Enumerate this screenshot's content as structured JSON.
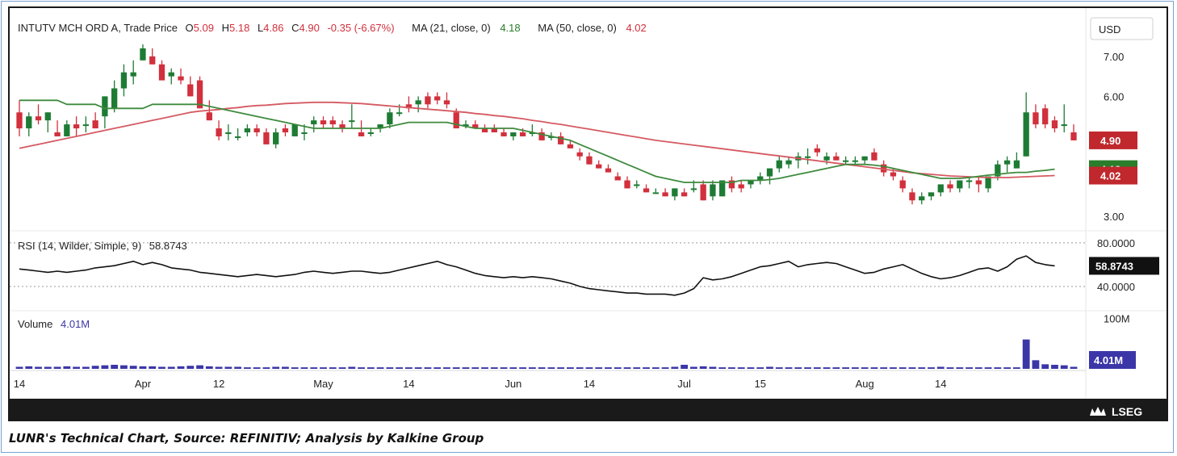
{
  "legend": {
    "symbol": "INTUTV MCH ORD A, Trade Price",
    "o_label": "O",
    "o_val": "5.09",
    "h_label": "H",
    "h_val": "5.18",
    "l_label": "L",
    "l_val": "4.86",
    "c_label": "C",
    "c_val": "4.90",
    "change": "-0.35 (-6.67%)",
    "ma21_label": "MA (21, close, 0)",
    "ma21_val": "4.18",
    "ma50_label": "MA (50, close, 0)",
    "ma50_val": "4.02"
  },
  "currency": "USD",
  "rsi_legend": {
    "label": "RSI (14, Wilder, Simple, 9)",
    "value": "58.8743"
  },
  "volume_legend": {
    "label": "Volume",
    "value": "4.01M"
  },
  "caption": "LUNR's Technical Chart, Source: REFINITIV; Analysis by Kalkine Group",
  "brand": "LSEG",
  "colors": {
    "up": "#1e7b34",
    "down": "#d1303c",
    "ma21": "#3e8a3e",
    "ma50": "#d55a62",
    "rsi": "#111111",
    "volume": "#3b36a8"
  },
  "chart_data": {
    "type": "candlestick",
    "price_axis": {
      "ticks": [
        3.0,
        4.0,
        5.0,
        6.0,
        7.0
      ],
      "labels": [
        "3.00",
        "4.00",
        "5.00",
        "6.00",
        "7.00"
      ],
      "ylim": [
        2.8,
        7.4
      ]
    },
    "badges": [
      {
        "value": 4.9,
        "label": "4.90",
        "color": "#c0282d"
      },
      {
        "value": 4.18,
        "label": "4.18",
        "color": "#2a7d2a"
      },
      {
        "value": 4.02,
        "label": "4.02",
        "color": "#c0282d"
      }
    ],
    "rsi_axis": {
      "ticks": [
        80,
        40
      ],
      "labels": [
        "80.0000",
        "40.0000"
      ],
      "ylim": [
        20,
        88
      ],
      "last": 58.87,
      "last_label": "58.8743"
    },
    "volume_axis": {
      "tick": 100,
      "tick_label": "100M",
      "last": 4.01,
      "last_label": "4.01M",
      "ylim": [
        0,
        110
      ]
    },
    "x_ticks": [
      {
        "i": 0,
        "label": "14"
      },
      {
        "i": 13,
        "label": "Apr"
      },
      {
        "i": 21,
        "label": "12"
      },
      {
        "i": 32,
        "label": "May"
      },
      {
        "i": 41,
        "label": "14"
      },
      {
        "i": 52,
        "label": "Jun"
      },
      {
        "i": 60,
        "label": "14"
      },
      {
        "i": 70,
        "label": "Jul"
      },
      {
        "i": 78,
        "label": "15"
      },
      {
        "i": 89,
        "label": "Aug"
      },
      {
        "i": 97,
        "label": "14"
      }
    ],
    "candles": [
      [
        5.6,
        5.9,
        5.0,
        5.2
      ],
      [
        5.2,
        5.6,
        5.0,
        5.5
      ],
      [
        5.5,
        5.8,
        5.3,
        5.4
      ],
      [
        5.4,
        5.6,
        5.1,
        5.6
      ],
      [
        5.1,
        5.4,
        5.0,
        5.0
      ],
      [
        5.0,
        5.4,
        5.0,
        5.3
      ],
      [
        5.3,
        5.5,
        5.0,
        5.2
      ],
      [
        5.3,
        5.5,
        5.1,
        5.3
      ],
      [
        5.4,
        5.6,
        5.2,
        5.2
      ],
      [
        5.5,
        6.0,
        5.2,
        6.0
      ],
      [
        5.7,
        6.4,
        5.6,
        6.2
      ],
      [
        6.2,
        6.8,
        6.0,
        6.6
      ],
      [
        6.5,
        6.9,
        6.3,
        6.6
      ],
      [
        6.9,
        7.3,
        6.9,
        7.2
      ],
      [
        7.0,
        7.2,
        6.8,
        6.8
      ],
      [
        6.8,
        6.9,
        6.4,
        6.4
      ],
      [
        6.5,
        6.7,
        6.3,
        6.6
      ],
      [
        6.5,
        6.7,
        6.3,
        6.4
      ],
      [
        6.3,
        6.5,
        6.0,
        6.0
      ],
      [
        6.4,
        6.5,
        5.7,
        5.7
      ],
      [
        5.6,
        5.9,
        5.4,
        5.4
      ],
      [
        5.2,
        5.4,
        4.9,
        5.0
      ],
      [
        5.1,
        5.3,
        4.9,
        5.1
      ],
      [
        5.0,
        5.2,
        4.9,
        5.0
      ],
      [
        5.1,
        5.3,
        5.0,
        5.2
      ],
      [
        5.2,
        5.3,
        5.0,
        5.1
      ],
      [
        5.1,
        5.2,
        4.8,
        4.8
      ],
      [
        4.8,
        5.2,
        4.7,
        5.1
      ],
      [
        5.2,
        5.3,
        5.0,
        5.1
      ],
      [
        5.0,
        5.3,
        5.0,
        5.3
      ],
      [
        5.1,
        5.3,
        4.9,
        5.1
      ],
      [
        5.3,
        5.5,
        5.1,
        5.4
      ],
      [
        5.4,
        5.5,
        5.2,
        5.3
      ],
      [
        5.4,
        5.5,
        5.2,
        5.3
      ],
      [
        5.3,
        5.4,
        5.1,
        5.2
      ],
      [
        5.4,
        5.8,
        5.2,
        5.4
      ],
      [
        5.1,
        5.4,
        5.0,
        5.0
      ],
      [
        5.1,
        5.2,
        5.0,
        5.1
      ],
      [
        5.2,
        5.3,
        5.1,
        5.3
      ],
      [
        5.3,
        5.7,
        5.2,
        5.6
      ],
      [
        5.6,
        5.8,
        5.5,
        5.6
      ],
      [
        5.8,
        6.0,
        5.6,
        5.7
      ],
      [
        5.8,
        6.0,
        5.6,
        5.9
      ],
      [
        6.0,
        6.1,
        5.7,
        5.8
      ],
      [
        6.0,
        6.1,
        5.8,
        5.9
      ],
      [
        5.9,
        6.1,
        5.7,
        5.8
      ],
      [
        5.6,
        5.7,
        5.2,
        5.2
      ],
      [
        5.3,
        5.4,
        5.2,
        5.3
      ],
      [
        5.3,
        5.4,
        5.2,
        5.2
      ],
      [
        5.2,
        5.3,
        5.1,
        5.1
      ],
      [
        5.2,
        5.3,
        5.1,
        5.1
      ],
      [
        5.1,
        5.2,
        5.0,
        5.0
      ],
      [
        5.0,
        5.1,
        4.9,
        5.1
      ],
      [
        5.1,
        5.2,
        5.0,
        5.0
      ],
      [
        5.1,
        5.3,
        5.0,
        5.1
      ],
      [
        5.1,
        5.2,
        4.9,
        4.9
      ],
      [
        5.0,
        5.1,
        4.9,
        5.0
      ],
      [
        5.0,
        5.1,
        4.8,
        4.8
      ],
      [
        4.8,
        4.9,
        4.7,
        4.7
      ],
      [
        4.6,
        4.7,
        4.4,
        4.5
      ],
      [
        4.5,
        4.6,
        4.3,
        4.3
      ],
      [
        4.3,
        4.4,
        4.2,
        4.2
      ],
      [
        4.2,
        4.3,
        4.1,
        4.1
      ],
      [
        4.0,
        4.1,
        3.9,
        3.9
      ],
      [
        3.9,
        4.0,
        3.7,
        3.7
      ],
      [
        3.8,
        3.9,
        3.7,
        3.8
      ],
      [
        3.7,
        3.8,
        3.6,
        3.6
      ],
      [
        3.6,
        3.7,
        3.6,
        3.6
      ],
      [
        3.6,
        3.7,
        3.5,
        3.5
      ],
      [
        3.5,
        3.7,
        3.4,
        3.7
      ],
      [
        3.6,
        3.7,
        3.5,
        3.5
      ],
      [
        3.7,
        3.9,
        3.6,
        3.7
      ],
      [
        3.8,
        3.9,
        3.4,
        3.4
      ],
      [
        3.5,
        3.9,
        3.4,
        3.8
      ],
      [
        3.5,
        3.9,
        3.5,
        3.9
      ],
      [
        3.9,
        4.0,
        3.6,
        3.7
      ],
      [
        3.8,
        3.9,
        3.6,
        3.7
      ],
      [
        3.8,
        3.9,
        3.7,
        3.9
      ],
      [
        3.9,
        4.1,
        3.8,
        4.0
      ],
      [
        4.0,
        4.2,
        3.8,
        4.2
      ],
      [
        4.2,
        4.5,
        4.1,
        4.4
      ],
      [
        4.3,
        4.5,
        4.2,
        4.4
      ],
      [
        4.4,
        4.6,
        4.2,
        4.5
      ],
      [
        4.5,
        4.7,
        4.3,
        4.5
      ],
      [
        4.7,
        4.8,
        4.5,
        4.6
      ],
      [
        4.4,
        4.6,
        4.3,
        4.5
      ],
      [
        4.5,
        4.6,
        4.4,
        4.4
      ],
      [
        4.4,
        4.5,
        4.3,
        4.4
      ],
      [
        4.4,
        4.5,
        4.3,
        4.4
      ],
      [
        4.4,
        4.5,
        4.3,
        4.5
      ],
      [
        4.6,
        4.7,
        4.4,
        4.4
      ],
      [
        4.3,
        4.4,
        4.0,
        4.1
      ],
      [
        4.1,
        4.2,
        3.9,
        4.0
      ],
      [
        3.9,
        4.0,
        3.6,
        3.7
      ],
      [
        3.6,
        3.7,
        3.3,
        3.4
      ],
      [
        3.4,
        3.6,
        3.3,
        3.5
      ],
      [
        3.5,
        3.6,
        3.4,
        3.6
      ],
      [
        3.6,
        3.8,
        3.5,
        3.8
      ],
      [
        3.8,
        3.9,
        3.6,
        3.7
      ],
      [
        3.7,
        3.9,
        3.6,
        3.9
      ],
      [
        3.9,
        4.0,
        3.7,
        3.9
      ],
      [
        3.9,
        4.0,
        3.6,
        3.8
      ],
      [
        3.7,
        4.0,
        3.6,
        4.0
      ],
      [
        4.0,
        4.4,
        3.9,
        4.3
      ],
      [
        4.3,
        4.5,
        4.1,
        4.4
      ],
      [
        4.2,
        4.6,
        4.2,
        4.4
      ],
      [
        4.5,
        6.1,
        4.5,
        5.6
      ],
      [
        5.6,
        5.8,
        5.2,
        5.3
      ],
      [
        5.7,
        5.8,
        5.2,
        5.3
      ],
      [
        5.4,
        5.5,
        5.1,
        5.2
      ],
      [
        5.3,
        5.8,
        5.1,
        5.3
      ],
      [
        5.1,
        5.3,
        4.9,
        4.9
      ]
    ],
    "ma21": [
      5.9,
      5.9,
      5.9,
      5.9,
      5.9,
      5.8,
      5.8,
      5.8,
      5.8,
      5.7,
      5.7,
      5.7,
      5.7,
      5.7,
      5.8,
      5.8,
      5.8,
      5.8,
      5.8,
      5.8,
      5.75,
      5.7,
      5.65,
      5.6,
      5.55,
      5.5,
      5.45,
      5.4,
      5.35,
      5.3,
      5.25,
      5.2,
      5.2,
      5.2,
      5.2,
      5.2,
      5.2,
      5.2,
      5.2,
      5.25,
      5.3,
      5.35,
      5.35,
      5.35,
      5.35,
      5.35,
      5.3,
      5.25,
      5.2,
      5.2,
      5.2,
      5.2,
      5.2,
      5.15,
      5.1,
      5.05,
      5.0,
      4.95,
      4.9,
      4.8,
      4.7,
      4.6,
      4.5,
      4.4,
      4.3,
      4.2,
      4.1,
      4.0,
      3.95,
      3.9,
      3.85,
      3.85,
      3.85,
      3.85,
      3.85,
      3.85,
      3.9,
      3.9,
      3.9,
      3.92,
      3.95,
      4.0,
      4.05,
      4.1,
      4.15,
      4.2,
      4.25,
      4.3,
      4.3,
      4.3,
      4.28,
      4.25,
      4.2,
      4.15,
      4.1,
      4.05,
      4.0,
      3.95,
      3.95,
      3.95,
      3.97,
      4.0,
      4.03,
      4.05,
      4.08,
      4.1,
      4.1,
      4.13,
      4.15,
      4.18
    ],
    "ma50": [
      4.7,
      4.75,
      4.8,
      4.85,
      4.9,
      4.95,
      5.0,
      5.05,
      5.1,
      5.15,
      5.2,
      5.25,
      5.3,
      5.35,
      5.4,
      5.45,
      5.5,
      5.55,
      5.6,
      5.63,
      5.65,
      5.67,
      5.7,
      5.72,
      5.75,
      5.77,
      5.78,
      5.8,
      5.82,
      5.83,
      5.84,
      5.85,
      5.85,
      5.85,
      5.84,
      5.83,
      5.82,
      5.8,
      5.78,
      5.76,
      5.74,
      5.72,
      5.7,
      5.68,
      5.66,
      5.64,
      5.62,
      5.6,
      5.57,
      5.55,
      5.52,
      5.5,
      5.47,
      5.44,
      5.4,
      5.37,
      5.33,
      5.3,
      5.26,
      5.22,
      5.18,
      5.14,
      5.1,
      5.06,
      5.02,
      4.98,
      4.94,
      4.9,
      4.87,
      4.84,
      4.81,
      4.78,
      4.75,
      4.72,
      4.69,
      4.66,
      4.63,
      4.6,
      4.57,
      4.54,
      4.51,
      4.48,
      4.45,
      4.42,
      4.39,
      4.36,
      4.33,
      4.3,
      4.27,
      4.24,
      4.21,
      4.18,
      4.15,
      4.12,
      4.09,
      4.07,
      4.05,
      4.03,
      4.01,
      4.0,
      3.99,
      3.98,
      3.97,
      3.97,
      3.97,
      3.98,
      3.99,
      4.0,
      4.01,
      4.02
    ],
    "rsi": [
      56,
      55,
      54,
      53,
      54,
      53,
      54,
      55,
      57,
      58,
      59,
      61,
      63,
      60,
      62,
      60,
      57,
      56,
      55,
      53,
      52,
      51,
      50,
      49,
      50,
      51,
      50,
      49,
      50,
      51,
      53,
      54,
      53,
      52,
      53,
      54,
      54,
      53,
      52,
      53,
      55,
      57,
      59,
      61,
      63,
      60,
      58,
      55,
      52,
      50,
      49,
      48,
      49,
      48,
      49,
      48,
      47,
      45,
      43,
      40,
      38,
      37,
      36,
      35,
      34,
      34,
      33,
      33,
      33,
      32,
      34,
      38,
      48,
      46,
      47,
      49,
      52,
      55,
      58,
      59,
      61,
      63,
      58,
      60,
      61,
      62,
      61,
      58,
      55,
      52,
      53,
      56,
      58,
      60,
      56,
      52,
      49,
      47,
      48,
      50,
      53,
      56,
      57,
      54,
      58,
      65,
      68,
      62,
      60,
      58.87
    ],
    "volume": [
      4,
      5,
      4,
      4,
      4,
      5,
      4,
      4,
      6,
      7,
      8,
      7,
      6,
      5,
      5,
      4,
      4,
      5,
      6,
      7,
      5,
      4,
      4,
      4,
      3,
      3,
      3,
      4,
      4,
      3,
      3,
      3,
      3,
      3,
      3,
      4,
      3,
      3,
      3,
      3,
      3,
      3,
      3,
      3,
      3,
      3,
      3,
      3,
      3,
      3,
      3,
      3,
      3,
      3,
      3,
      3,
      3,
      3,
      3,
      3,
      3,
      3,
      3,
      3,
      3,
      3,
      3,
      3,
      3,
      4,
      8,
      4,
      5,
      4,
      3,
      3,
      3,
      3,
      3,
      4,
      3,
      3,
      3,
      3,
      3,
      3,
      3,
      3,
      3,
      3,
      3,
      3,
      3,
      3,
      3,
      3,
      3,
      4,
      3,
      3,
      3,
      3,
      3,
      3,
      3,
      3,
      58,
      17,
      9,
      8,
      7,
      4.01
    ]
  }
}
